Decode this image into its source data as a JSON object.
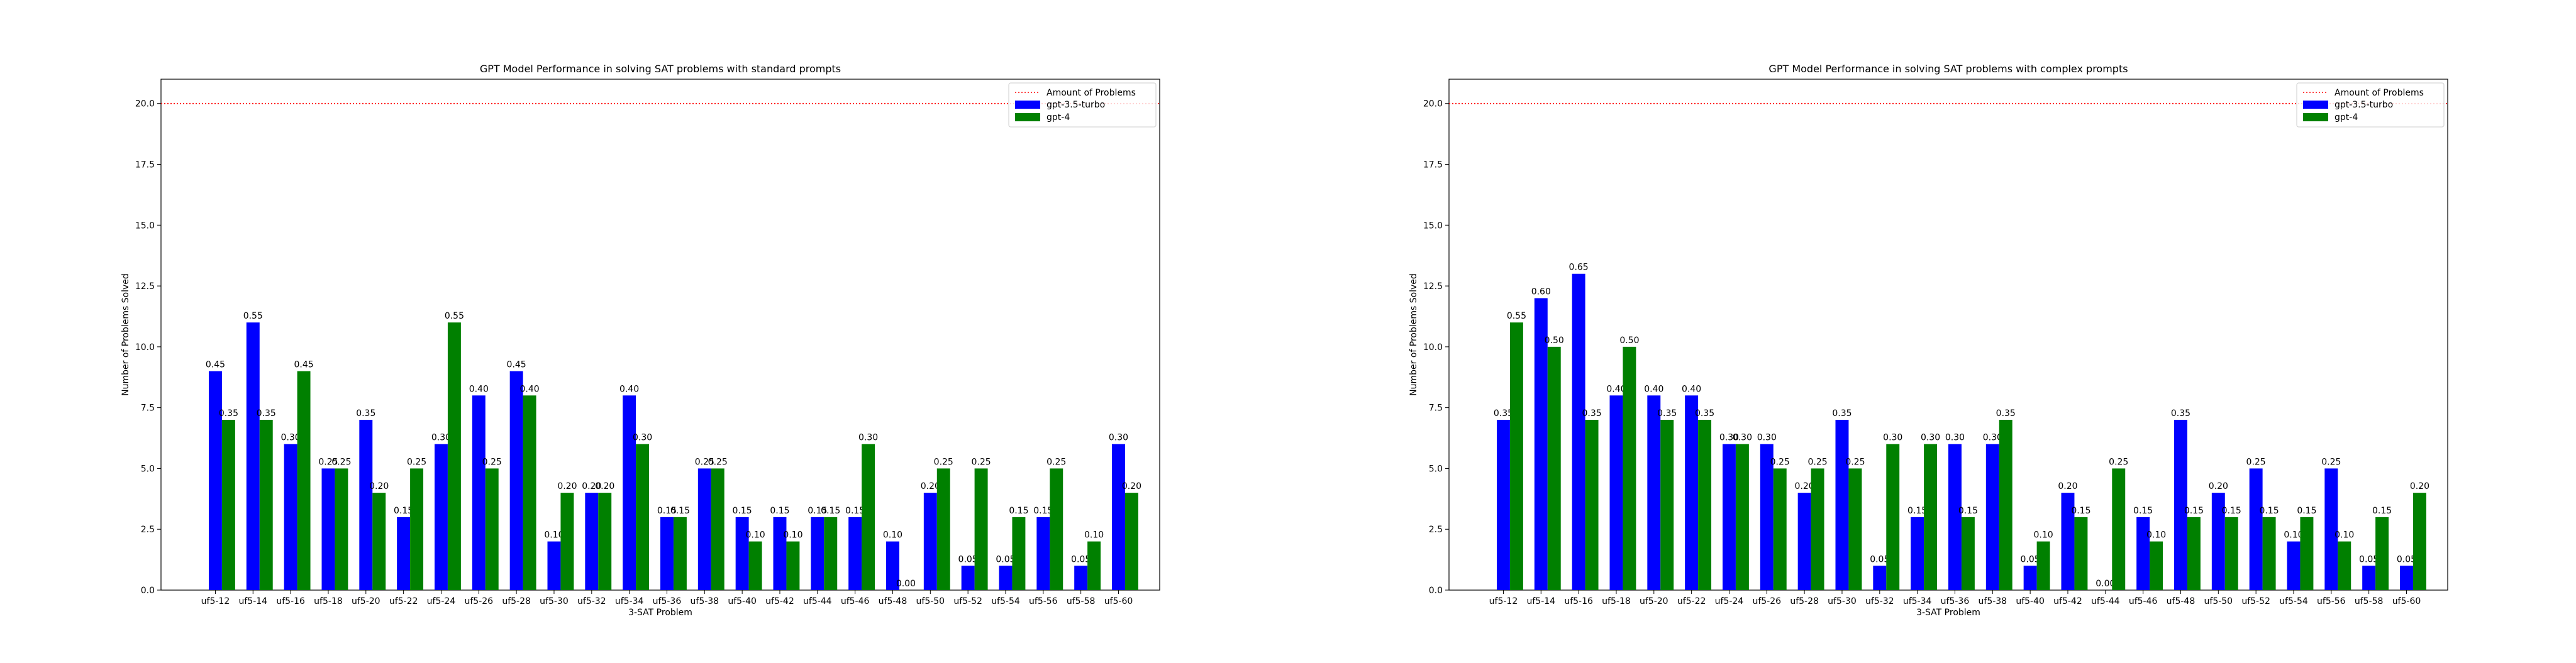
{
  "figure": {
    "colors": {
      "gpt35": "#0000ff",
      "gpt4": "#008000",
      "reference": "#ff0000"
    }
  },
  "chart_data": [
    {
      "type": "bar",
      "title": "GPT Model Performance in solving SAT problems with standard prompts",
      "xlabel": "3-SAT Problem",
      "ylabel": "Number of Problems Solved",
      "ylim": [
        0,
        21
      ],
      "yticks": [
        "0.0",
        "2.5",
        "5.0",
        "7.5",
        "10.0",
        "12.5",
        "15.0",
        "17.5",
        "20.0"
      ],
      "grid": false,
      "legend_position": "top-right",
      "reference_line": {
        "name": "Amount of Problems",
        "value": 20,
        "style": "dotted"
      },
      "categories": [
        "uf5-12",
        "uf5-14",
        "uf5-16",
        "uf5-18",
        "uf5-20",
        "uf5-22",
        "uf5-24",
        "uf5-26",
        "uf5-28",
        "uf5-30",
        "uf5-32",
        "uf5-34",
        "uf5-36",
        "uf5-38",
        "uf5-40",
        "uf5-42",
        "uf5-44",
        "uf5-46",
        "uf5-48",
        "uf5-50",
        "uf5-52",
        "uf5-54",
        "uf5-56",
        "uf5-58",
        "uf5-60"
      ],
      "series": [
        {
          "name": "gpt-3.5-turbo",
          "values": [
            9,
            11,
            6,
            5,
            7,
            3,
            6,
            8,
            9,
            2,
            4,
            8,
            3,
            5,
            3,
            3,
            3,
            3,
            2,
            4,
            1,
            1,
            3,
            1,
            6
          ],
          "labels": [
            "0.45",
            "0.55",
            "0.30",
            "0.25",
            "0.35",
            "0.15",
            "0.30",
            "0.40",
            "0.45",
            "0.10",
            "0.20",
            "0.40",
            "0.15",
            "0.25",
            "0.15",
            "0.15",
            "0.15",
            "0.15",
            "0.10",
            "0.20",
            "0.05",
            "0.05",
            "0.15",
            "0.05",
            "0.30"
          ]
        },
        {
          "name": "gpt-4",
          "values": [
            7,
            7,
            9,
            5,
            4,
            5,
            11,
            5,
            8,
            4,
            4,
            6,
            3,
            5,
            2,
            2,
            3,
            6,
            0,
            5,
            5,
            3,
            5,
            2,
            4
          ],
          "labels": [
            "0.35",
            "0.35",
            "0.45",
            "0.25",
            "0.20",
            "0.25",
            "0.55",
            "0.25",
            "0.40",
            "0.20",
            "0.20",
            "0.30",
            "0.15",
            "0.25",
            "0.10",
            "0.10",
            "0.15",
            "0.30",
            "0.00",
            "0.25",
            "0.25",
            "0.15",
            "0.25",
            "0.10",
            "0.20"
          ]
        }
      ]
    },
    {
      "type": "bar",
      "title": "GPT Model Performance in solving SAT problems with complex prompts",
      "xlabel": "3-SAT Problem",
      "ylabel": "Number of Problems Solved",
      "ylim": [
        0,
        21
      ],
      "yticks": [
        "0.0",
        "2.5",
        "5.0",
        "7.5",
        "10.0",
        "12.5",
        "15.0",
        "17.5",
        "20.0"
      ],
      "grid": false,
      "legend_position": "top-right",
      "reference_line": {
        "name": "Amount of Problems",
        "value": 20,
        "style": "dotted"
      },
      "categories": [
        "uf5-12",
        "uf5-14",
        "uf5-16",
        "uf5-18",
        "uf5-20",
        "uf5-22",
        "uf5-24",
        "uf5-26",
        "uf5-28",
        "uf5-30",
        "uf5-32",
        "uf5-34",
        "uf5-36",
        "uf5-38",
        "uf5-40",
        "uf5-42",
        "uf5-44",
        "uf5-46",
        "uf5-48",
        "uf5-50",
        "uf5-52",
        "uf5-54",
        "uf5-56",
        "uf5-58",
        "uf5-60"
      ],
      "series": [
        {
          "name": "gpt-3.5-turbo",
          "values": [
            7,
            12,
            13,
            8,
            8,
            8,
            6,
            6,
            4,
            7,
            1,
            3,
            6,
            6,
            1,
            4,
            0,
            3,
            7,
            4,
            5,
            2,
            5,
            1,
            1
          ],
          "labels": [
            "0.35",
            "0.60",
            "0.65",
            "0.40",
            "0.40",
            "0.40",
            "0.30",
            "0.30",
            "0.20",
            "0.35",
            "0.05",
            "0.15",
            "0.30",
            "0.30",
            "0.05",
            "0.20",
            "0.00",
            "0.15",
            "0.35",
            "0.20",
            "0.25",
            "0.10",
            "0.25",
            "0.05",
            "0.05"
          ]
        },
        {
          "name": "gpt-4",
          "values": [
            11,
            10,
            7,
            10,
            7,
            7,
            6,
            5,
            5,
            5,
            6,
            6,
            3,
            7,
            2,
            3,
            5,
            2,
            3,
            3,
            3,
            3,
            2,
            3,
            4
          ],
          "labels": [
            "0.55",
            "0.50",
            "0.35",
            "0.50",
            "0.35",
            "0.35",
            "0.30",
            "0.25",
            "0.25",
            "0.25",
            "0.30",
            "0.30",
            "0.15",
            "0.35",
            "0.10",
            "0.15",
            "0.25",
            "0.10",
            "0.15",
            "0.15",
            "0.15",
            "0.15",
            "0.10",
            "0.15",
            "0.20"
          ]
        }
      ]
    }
  ]
}
